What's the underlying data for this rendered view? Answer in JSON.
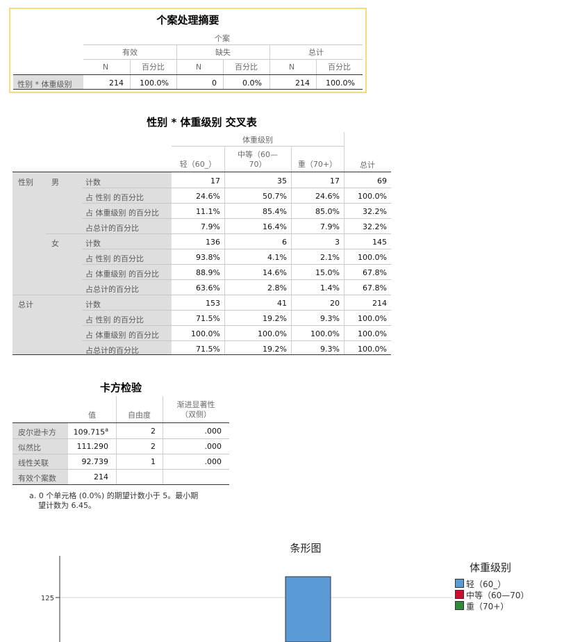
{
  "summary": {
    "title": "个案处理摘要",
    "group_header": "个案",
    "valid": "有效",
    "missing": "缺失",
    "total": "总计",
    "n": "N",
    "pct": "百分比",
    "row_label": "性别 * 体重级别",
    "values": [
      "214",
      "100.0%",
      "0",
      "0.0%",
      "214",
      "100.0%"
    ]
  },
  "crosstab": {
    "title": "性别 * 体重级别 交叉表",
    "group_header": "体重级别",
    "col_light": "轻（60_）",
    "col_mid_1": "中等（60—",
    "col_mid_2": "70）",
    "col_heavy": "重（70+）",
    "col_total": "总计",
    "row_var": "性别",
    "male": "男",
    "female": "女",
    "total": "总计",
    "stat_labels": [
      "计数",
      "占 性别 的百分比",
      "占 体重级别 的百分比",
      "占总计的百分比"
    ],
    "rows": [
      [
        "17",
        "35",
        "17",
        "69"
      ],
      [
        "24.6%",
        "50.7%",
        "24.6%",
        "100.0%"
      ],
      [
        "11.1%",
        "85.4%",
        "85.0%",
        "32.2%"
      ],
      [
        "7.9%",
        "16.4%",
        "7.9%",
        "32.2%"
      ],
      [
        "136",
        "6",
        "3",
        "145"
      ],
      [
        "93.8%",
        "4.1%",
        "2.1%",
        "100.0%"
      ],
      [
        "88.9%",
        "14.6%",
        "15.0%",
        "67.8%"
      ],
      [
        "63.6%",
        "2.8%",
        "1.4%",
        "67.8%"
      ],
      [
        "153",
        "41",
        "20",
        "214"
      ],
      [
        "71.5%",
        "19.2%",
        "9.3%",
        "100.0%"
      ],
      [
        "100.0%",
        "100.0%",
        "100.0%",
        "100.0%"
      ],
      [
        "71.5%",
        "19.2%",
        "9.3%",
        "100.0%"
      ]
    ]
  },
  "chisq": {
    "title": "卡方检验",
    "col_value": "值",
    "col_df": "自由度",
    "col_sig_1": "渐进显著性",
    "col_sig_2": "（双侧）",
    "rows": [
      {
        "label": "皮尔逊卡方",
        "value": "109.715",
        "sup": "a",
        "df": "2",
        "sig": ".000"
      },
      {
        "label": "似然比",
        "value": "111.290",
        "sup": "",
        "df": "2",
        "sig": ".000"
      },
      {
        "label": "线性关联",
        "value": "92.739",
        "sup": "",
        "df": "1",
        "sig": ".000"
      },
      {
        "label": "有效个案数",
        "value": "214",
        "sup": "",
        "df": "",
        "sig": ""
      }
    ],
    "footnote_1": "a. 0 个单元格 (0.0%) 的期望计数小于 5。最小期",
    "footnote_2": "望计数为 6.45。"
  },
  "chart_data": {
    "type": "bar",
    "title": "条形图",
    "legend_title": "体重级别",
    "legend_position": "right",
    "series": [
      {
        "name": "轻（60_）",
        "color": "#5b9bd5"
      },
      {
        "name": "中等（60—70）",
        "color": "#c8102e"
      },
      {
        "name": "重（70+）",
        "color": "#2e8b3a"
      }
    ],
    "yticks": [
      "125"
    ],
    "grid": true,
    "visible_bar": {
      "series": "轻（60_）",
      "value": 136
    }
  }
}
